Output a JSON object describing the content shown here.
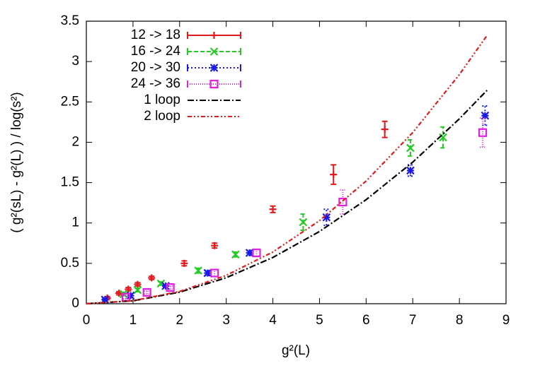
{
  "chart_data": {
    "type": "scatter",
    "xlabel": "g²(L)",
    "ylabel": "( g²(sL) - g²(L) ) / log(s²)",
    "xlim": [
      0,
      9
    ],
    "xticks": [
      0,
      1,
      2,
      3,
      4,
      5,
      6,
      7,
      8,
      9
    ],
    "ylim": [
      0,
      3.5
    ],
    "yticks": [
      0,
      0.5,
      1,
      1.5,
      2,
      2.5,
      3,
      3.5
    ],
    "legend": "upper-left",
    "series": [
      {
        "name": "12 -> 18",
        "color": "#e31a1c",
        "marker": "plus",
        "dash": "none",
        "x": [
          0.45,
          0.7,
          0.9,
          1.1,
          1.4,
          2.1,
          2.75,
          4.0,
          5.3,
          6.4
        ],
        "values": [
          0.07,
          0.13,
          0.18,
          0.24,
          0.32,
          0.5,
          0.72,
          1.17,
          1.6,
          2.16
        ],
        "errors": [
          0.02,
          0.02,
          0.02,
          0.02,
          0.02,
          0.03,
          0.03,
          0.04,
          0.12,
          0.1
        ]
      },
      {
        "name": "16 -> 24",
        "color": "#22cc22",
        "marker": "cross",
        "dash": "6,3",
        "x": [
          0.8,
          1.1,
          1.6,
          2.4,
          3.2,
          4.65,
          6.95,
          7.65
        ],
        "values": [
          0.12,
          0.17,
          0.25,
          0.41,
          0.61,
          1.01,
          1.93,
          2.06
        ],
        "errors": [
          0.02,
          0.02,
          0.02,
          0.03,
          0.03,
          0.1,
          0.1,
          0.13
        ]
      },
      {
        "name": "20 -> 30",
        "color": "#1a1ae6",
        "marker": "star",
        "dash": "2,3",
        "x": [
          0.4,
          0.95,
          1.7,
          2.6,
          3.5,
          5.15,
          6.95,
          8.55
        ],
        "values": [
          0.05,
          0.1,
          0.22,
          0.38,
          0.63,
          1.07,
          1.65,
          2.33
        ],
        "errors": [
          0.01,
          0.02,
          0.02,
          0.03,
          0.03,
          0.1,
          0.07,
          0.12
        ]
      },
      {
        "name": "24 -> 36",
        "color": "#e020e0",
        "marker": "square",
        "dash": "1,2",
        "x": [
          0.85,
          1.3,
          1.8,
          2.75,
          3.65,
          5.5,
          8.5
        ],
        "values": [
          0.08,
          0.14,
          0.2,
          0.38,
          0.63,
          1.26,
          2.12
        ],
        "errors": [
          0.02,
          0.02,
          0.02,
          0.04,
          0.04,
          0.15,
          0.18
        ]
      },
      {
        "name": "1 loop",
        "color": "#000000",
        "marker": "line",
        "dash": "9,3,2,3",
        "x": [
          0,
          1,
          2,
          3,
          4,
          5,
          6,
          7,
          8,
          8.6
        ],
        "values": [
          0,
          0.036,
          0.143,
          0.322,
          0.573,
          0.895,
          1.289,
          1.754,
          2.291,
          2.648
        ]
      },
      {
        "name": "2 loop",
        "color": "#e31a1c",
        "marker": "line",
        "dash": "6,3,2,3,2,3",
        "x": [
          0,
          1,
          2,
          3,
          4,
          5,
          6,
          7,
          8,
          8.6
        ],
        "values": [
          0,
          0.037,
          0.152,
          0.351,
          0.641,
          1.029,
          1.52,
          2.121,
          2.839,
          3.329
        ]
      }
    ]
  }
}
